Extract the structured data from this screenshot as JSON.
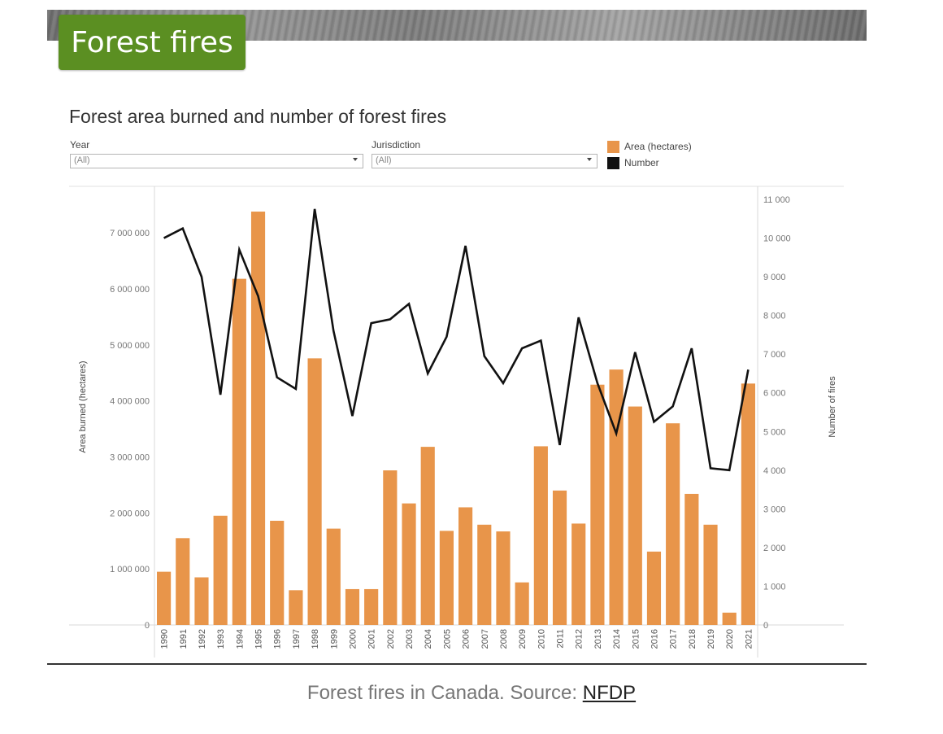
{
  "header": {
    "title": "Forest fires"
  },
  "filters": {
    "year": {
      "label": "Year",
      "value": "(All)"
    },
    "jurisdiction": {
      "label": "Jurisdiction",
      "value": "(All)"
    }
  },
  "colors": {
    "area": "#e8954a",
    "number": "#111111",
    "banner_green": "#5b8f22"
  },
  "chart_data": {
    "type": "bar",
    "title": "Forest area burned and number of forest fires",
    "categories": [
      "1990",
      "1991",
      "1992",
      "1993",
      "1994",
      "1995",
      "1996",
      "1997",
      "1998",
      "1999",
      "2000",
      "2001",
      "2002",
      "2003",
      "2004",
      "2005",
      "2006",
      "2007",
      "2008",
      "2009",
      "2010",
      "2011",
      "2012",
      "2013",
      "2014",
      "2015",
      "2016",
      "2017",
      "2018",
      "2019",
      "2020",
      "2021"
    ],
    "series": [
      {
        "name": "Area (hectares)",
        "type": "bar",
        "axis": "left",
        "values": [
          950000,
          1550000,
          850000,
          1950000,
          6180000,
          7380000,
          1860000,
          620000,
          4760000,
          1720000,
          640000,
          640000,
          2760000,
          2170000,
          3180000,
          1680000,
          2100000,
          1790000,
          1670000,
          760000,
          3190000,
          2400000,
          1810000,
          4290000,
          4560000,
          3900000,
          1310000,
          3600000,
          2340000,
          1790000,
          220000,
          4310000
        ]
      },
      {
        "name": "Number",
        "type": "line",
        "axis": "right",
        "values": [
          10000,
          10250,
          9000,
          5950,
          9700,
          8500,
          6400,
          6100,
          10750,
          7600,
          5400,
          7800,
          7900,
          8300,
          6500,
          7450,
          9800,
          6950,
          6250,
          7150,
          7350,
          4650,
          7950,
          6250,
          4950,
          7050,
          5250,
          5650,
          7150,
          4050,
          4000,
          6600
        ]
      }
    ],
    "xlabel": "",
    "ylabel": "Area burned (hectares)",
    "y2label": "Number of fires",
    "ylim": [
      0,
      7700000
    ],
    "y2lim": [
      0,
      11000
    ],
    "yticks": [
      "0",
      "1 000 000",
      "2 000 000",
      "3 000 000",
      "4 000 000",
      "5 000 000",
      "6 000 000",
      "7 000 000"
    ],
    "y2ticks": [
      "0",
      "1 000",
      "2 000",
      "3 000",
      "4 000",
      "5 000",
      "6 000",
      "7 000",
      "8 000",
      "9 000",
      "10 000",
      "11 000"
    ],
    "legend_position": "top-right",
    "grid": false
  },
  "caption": {
    "text": "Forest fires in Canada. Source: ",
    "link": "NFDP"
  }
}
